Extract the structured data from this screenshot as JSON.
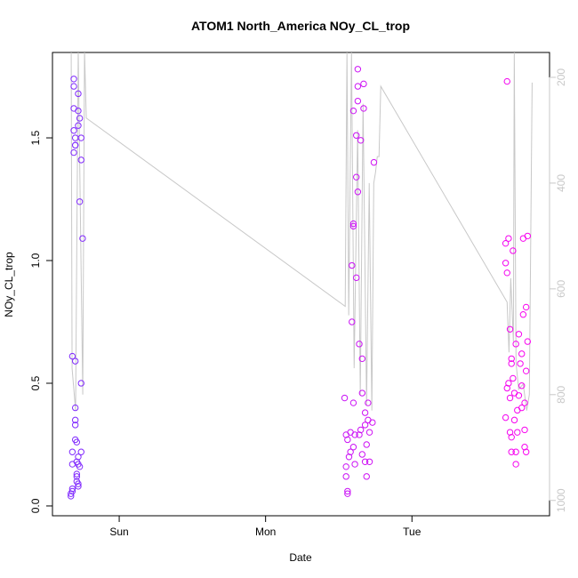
{
  "chart_data": {
    "type": "scatter",
    "title": "ATOM1 North_America NOy_CL_trop",
    "xlabel": "Date",
    "ylabel": "NOy_CL_trop",
    "xlim": [
      -0.456,
      2.94
    ],
    "xticks": [
      {
        "value": 0,
        "label": "Sun"
      },
      {
        "value": 1,
        "label": "Mon"
      },
      {
        "value": 2,
        "label": "Tue"
      }
    ],
    "ylim": [
      -0.04,
      1.848
    ],
    "yticks": [
      {
        "value": 0,
        "label": "0.0"
      },
      0.5,
      {
        "value": 1,
        "label": "1.0"
      },
      1.5
    ],
    "y2lim": [
      1029,
      153
    ],
    "y2ticks": [
      200,
      400,
      600,
      800,
      1000
    ],
    "color_start": "#7a2cff",
    "color_end": "#ff00ee",
    "x": [
      -0.33,
      -0.33,
      -0.32,
      -0.32,
      -0.32,
      -0.32,
      -0.32,
      -0.31,
      -0.31,
      -0.31,
      -0.31,
      -0.3,
      -0.3,
      -0.31,
      -0.3,
      -0.3,
      -0.3,
      -0.3,
      -0.3,
      -0.3,
      -0.29,
      -0.29,
      -0.28,
      -0.29,
      -0.29,
      -0.29,
      -0.28,
      -0.28,
      -0.28,
      -0.28,
      -0.28,
      -0.27,
      -0.28,
      -0.27,
      -0.26,
      -0.26,
      -0.25,
      -0.26,
      -0.26,
      -0.27,
      1.54,
      1.55,
      1.55,
      1.55,
      1.56,
      1.56,
      1.56,
      1.57,
      1.58,
      1.59,
      1.59,
      1.6,
      1.6,
      1.6,
      1.6,
      1.61,
      1.61,
      1.62,
      1.62,
      1.62,
      1.63,
      1.63,
      1.63,
      1.63,
      1.64,
      1.64,
      1.65,
      1.65,
      1.66,
      1.66,
      1.67,
      1.67,
      1.68,
      1.68,
      1.68,
      1.69,
      1.69,
      1.7,
      1.7,
      1.71,
      1.71,
      1.74,
      1.73,
      1.58,
      1.6,
      1.66,
      2.64,
      2.64,
      2.64,
      2.65,
      2.65,
      2.65,
      2.66,
      2.67,
      2.67,
      2.67,
      2.68,
      2.68,
      2.68,
      2.69,
      2.69,
      2.7,
      2.7,
      2.71,
      2.71,
      2.72,
      2.72,
      2.73,
      2.73,
      2.74,
      2.75,
      2.75,
      2.76,
      2.76,
      2.77,
      2.77,
      2.77,
      2.78,
      2.78,
      2.78,
      2.79,
      2.79,
      2.66,
      2.71,
      2.75,
      2.68
    ],
    "values": [
      0.05,
      0.04,
      0.06,
      0.07,
      0.17,
      0.22,
      0.61,
      1.74,
      1.71,
      1.62,
      1.53,
      1.5,
      1.47,
      1.44,
      1.47,
      0.59,
      0.4,
      0.35,
      0.33,
      0.27,
      0.26,
      0.18,
      0.17,
      0.13,
      0.12,
      0.1,
      0.09,
      0.08,
      0.2,
      1.68,
      1.61,
      1.58,
      1.55,
      1.24,
      1.41,
      1.5,
      1.09,
      0.5,
      0.22,
      0.16,
      0.44,
      0.29,
      0.16,
      0.12,
      0.06,
      0.05,
      0.27,
      0.2,
      0.3,
      0.98,
      0.75,
      1.14,
      1.15,
      1.61,
      0.42,
      0.17,
      0.29,
      0.93,
      1.34,
      1.51,
      1.28,
      1.71,
      1.78,
      1.65,
      0.66,
      0.29,
      0.31,
      1.49,
      0.46,
      0.6,
      1.62,
      1.72,
      0.18,
      0.33,
      0.38,
      0.12,
      0.25,
      0.35,
      0.42,
      0.3,
      0.18,
      1.4,
      0.34,
      0.22,
      0.24,
      0.21,
      0.36,
      1.07,
      0.99,
      0.95,
      1.73,
      0.48,
      0.5,
      0.72,
      0.44,
      0.3,
      0.28,
      0.6,
      0.22,
      0.52,
      1.04,
      0.46,
      0.35,
      0.22,
      0.17,
      0.39,
      0.3,
      0.7,
      0.45,
      0.58,
      0.62,
      0.4,
      0.78,
      1.09,
      0.42,
      0.31,
      0.24,
      0.22,
      0.55,
      0.81,
      0.67,
      1.1,
      1.09,
      0.66,
      0.49,
      0.58
    ],
    "line": {
      "axis": "y2",
      "color": "#c8c8c8",
      "x": [
        -0.328,
        -0.322,
        -0.298,
        -0.28,
        -0.249,
        -0.237,
        -0.225,
        1.544,
        1.556,
        1.568,
        1.587,
        1.605,
        1.629,
        1.647,
        1.666,
        1.69,
        1.708,
        1.726,
        1.739,
        1.751,
        1.763,
        1.775,
        1.787,
        2.65,
        2.663,
        2.675,
        2.693,
        2.699,
        2.711,
        2.729,
        2.76,
        2.784,
        2.802,
        2.821
      ],
      "values": [
        150,
        750,
        830,
        150,
        800,
        150,
        277,
        633,
        150,
        650,
        150,
        750,
        300,
        800,
        250,
        820,
        400,
        830,
        400,
        380,
        350,
        350,
        217,
        625,
        720,
        580,
        700,
        150,
        740,
        790,
        780,
        830,
        800,
        210
      ]
    }
  }
}
